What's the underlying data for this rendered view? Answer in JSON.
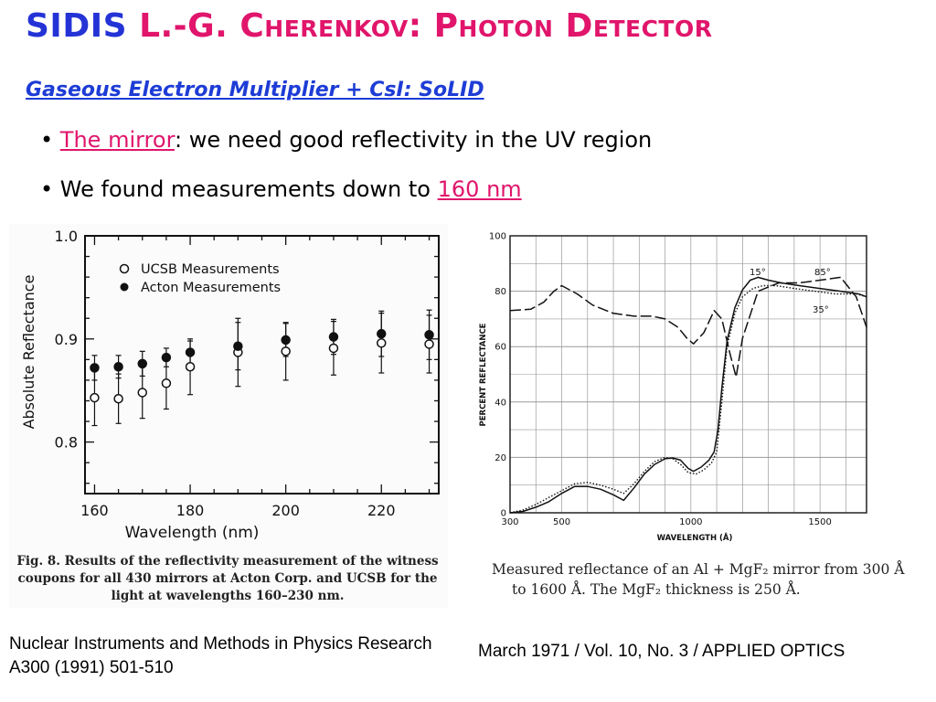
{
  "title": {
    "part1": "SIDIS ",
    "part2": "L.-G. Cherenkov: Photon Detector"
  },
  "subtitle": "Gaseous Electron Multiplier + CsI: SoLID",
  "bullets": [
    {
      "highlight": "The mirror",
      "text": ": we need good reflectivity in the UV region"
    },
    {
      "text": "We found measurements down to ",
      "highlight": "160 nm"
    }
  ],
  "figure_left": {
    "caption": "Fig. 8. Results of the reflectivity measurement of the witness coupons for all 430 mirrors at Acton Corp. and UCSB for the light at wavelengths 160–230 nm.",
    "reference": "Nuclear Instruments and Methods in Physics Research A300 (1991) 501-510"
  },
  "figure_right": {
    "caption_line1": "Measured reflectance of an Al + MgF₂ mirror from 300 Å",
    "caption_line2": "to 1600 Å.   The MgF₂ thickness is 250 Å.",
    "reference": "March 1971 / Vol. 10, No. 3 / APPLIED OPTICS"
  },
  "colors": {
    "title_blue": "#2433d6",
    "pink": "#e0156b",
    "subtitle_blue": "#1d3cd6"
  },
  "chart_data": [
    {
      "type": "scatter",
      "xlabel": "Wavelength    (nm)",
      "ylabel": "Absolute Reflectance",
      "xlim": [
        158,
        232
      ],
      "ylim": [
        0.75,
        1.0
      ],
      "xticks": [
        "160",
        "180",
        "200",
        "220"
      ],
      "yticks": [
        "0.8",
        "0.9",
        "1.0"
      ],
      "legend_position": "top-left",
      "series": [
        {
          "name": "UCSB Measurements",
          "marker": "open-circle",
          "x": [
            160,
            165,
            170,
            175,
            180,
            190,
            200,
            210,
            220,
            230
          ],
          "y": [
            0.843,
            0.842,
            0.848,
            0.857,
            0.873,
            0.887,
            0.888,
            0.891,
            0.896,
            0.895
          ],
          "err": [
            0.027,
            0.024,
            0.025,
            0.025,
            0.027,
            0.033,
            0.028,
            0.026,
            0.029,
            0.028
          ]
        },
        {
          "name": "Acton Measurements",
          "marker": "filled-circle",
          "x": [
            160,
            165,
            170,
            175,
            180,
            190,
            200,
            210,
            220,
            230
          ],
          "y": [
            0.872,
            0.873,
            0.876,
            0.882,
            0.887,
            0.893,
            0.899,
            0.902,
            0.905,
            0.904
          ],
          "err": [
            0.012,
            0.011,
            0.012,
            0.009,
            0.011,
            0.023,
            0.016,
            0.017,
            0.022,
            0.024
          ]
        }
      ]
    },
    {
      "type": "line",
      "xlabel": "WAVELENGTH (Å)",
      "ylabel": "PERCENT  REFLECTANCE",
      "xlim": [
        300,
        1680
      ],
      "ylim": [
        0,
        100
      ],
      "xticks": [
        "300",
        "500",
        "1000",
        "1500"
      ],
      "yticks": [
        "0",
        "20",
        "40",
        "60",
        "80",
        "100"
      ],
      "grid": true,
      "curve_labels": [
        "15°",
        "85°",
        "35°"
      ],
      "series": [
        {
          "name": "85°",
          "style": "long-dash",
          "x": [
            300,
            380,
            430,
            470,
            500,
            560,
            620,
            700,
            780,
            850,
            900,
            950,
            985,
            1010,
            1050,
            1090,
            1120,
            1150,
            1175,
            1200,
            1260,
            1340,
            1420,
            1500,
            1580,
            1640,
            1680
          ],
          "y": [
            73,
            73.5,
            76,
            80,
            82,
            79,
            75,
            72,
            71,
            71,
            70,
            67,
            63,
            61,
            65,
            73,
            70,
            58,
            49,
            63,
            80,
            83,
            83,
            84,
            85,
            78,
            67
          ]
        },
        {
          "name": "15°",
          "style": "solid",
          "x": [
            300,
            350,
            400,
            450,
            500,
            550,
            600,
            650,
            700,
            740,
            780,
            820,
            860,
            900,
            930,
            960,
            990,
            1010,
            1040,
            1070,
            1090,
            1105,
            1120,
            1140,
            1170,
            1200,
            1230,
            1260,
            1300,
            1350,
            1420,
            1500,
            1580,
            1650,
            1680
          ],
          "y": [
            0,
            0.5,
            2,
            4,
            7,
            9.5,
            9.5,
            8.5,
            6.5,
            4.5,
            9,
            14,
            17.5,
            19.5,
            19.8,
            19,
            16,
            15,
            16.5,
            19,
            22,
            30,
            45,
            62,
            74,
            80.5,
            84,
            85,
            84,
            83,
            82,
            81,
            80,
            79,
            78
          ]
        },
        {
          "name": "35°",
          "style": "dotted",
          "x": [
            300,
            350,
            400,
            450,
            500,
            550,
            600,
            650,
            700,
            740,
            780,
            820,
            860,
            900,
            930,
            960,
            990,
            1020,
            1050,
            1080,
            1100,
            1120,
            1140,
            1170,
            1200,
            1240,
            1280,
            1330,
            1400,
            1480,
            1560,
            1640,
            1680
          ],
          "y": [
            0,
            1,
            3,
            5.5,
            8,
            10.5,
            11,
            10,
            8.5,
            7,
            10.5,
            15,
            18.5,
            20,
            19.5,
            17.5,
            14.5,
            14,
            15.5,
            18,
            22,
            40,
            60,
            72,
            78,
            81,
            82,
            82,
            81,
            80,
            79,
            79,
            78
          ]
        }
      ]
    }
  ]
}
